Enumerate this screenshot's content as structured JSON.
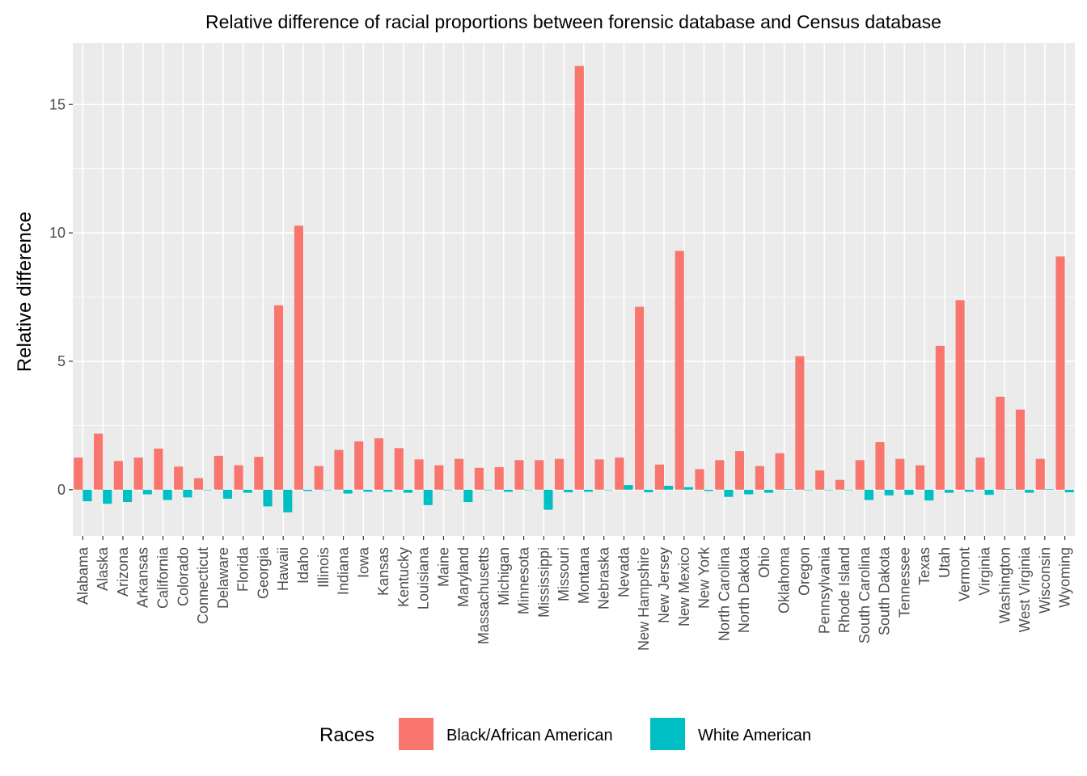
{
  "chart_data": {
    "type": "bar",
    "title": "Relative difference of racial proportions between forensic database and Census database",
    "xlabel": "",
    "ylabel": "Relative difference",
    "ylim": [
      -1.8,
      17.4
    ],
    "yticks": [
      0,
      5,
      10,
      15
    ],
    "grid": true,
    "legend": {
      "title": "Races",
      "position": "bottom"
    },
    "categories": [
      "Alabama",
      "Alaska",
      "Arizona",
      "Arkansas",
      "California",
      "Colorado",
      "Connecticut",
      "Delaware",
      "Florida",
      "Georgia",
      "Hawaii",
      "Idaho",
      "Illinois",
      "Indiana",
      "Iowa",
      "Kansas",
      "Kentucky",
      "Louisiana",
      "Maine",
      "Maryland",
      "Massachusetts",
      "Michigan",
      "Minnesota",
      "Mississippi",
      "Missouri",
      "Montana",
      "Nebraska",
      "Nevada",
      "New Hampshire",
      "New Jersey",
      "New Mexico",
      "New York",
      "North Carolina",
      "North Dakota",
      "Ohio",
      "Oklahoma",
      "Oregon",
      "Pennsylvania",
      "Rhode Island",
      "South Carolina",
      "South Dakota",
      "Tennessee",
      "Texas",
      "Utah",
      "Vermont",
      "Virginia",
      "Washington",
      "West Virginia",
      "Wisconsin",
      "Wyoming"
    ],
    "series": [
      {
        "name": "Black/African American",
        "color": "#F8766D",
        "values": [
          1.25,
          2.18,
          1.12,
          1.25,
          1.6,
          0.9,
          0.45,
          1.32,
          0.95,
          1.28,
          7.18,
          10.28,
          0.92,
          1.55,
          1.88,
          2.0,
          1.62,
          1.18,
          0.95,
          1.2,
          0.85,
          0.88,
          1.15,
          1.15,
          1.2,
          16.5,
          1.18,
          1.25,
          7.12,
          0.98,
          9.3,
          0.8,
          1.15,
          1.5,
          0.92,
          1.42,
          5.2,
          0.75,
          0.38,
          1.15,
          1.85,
          1.2,
          0.95,
          5.6,
          7.38,
          1.25,
          3.62,
          3.12,
          1.2,
          9.08
        ]
      },
      {
        "name": "White American",
        "color": "#00BFC4",
        "values": [
          -0.45,
          -0.55,
          -0.48,
          -0.18,
          -0.4,
          -0.3,
          -0.02,
          -0.35,
          -0.12,
          -0.65,
          -0.88,
          -0.05,
          0.0,
          -0.15,
          -0.08,
          -0.08,
          -0.12,
          -0.6,
          -0.02,
          -0.48,
          -0.02,
          -0.08,
          0.0,
          -0.78,
          -0.1,
          -0.08,
          0.0,
          0.18,
          -0.1,
          0.15,
          0.1,
          -0.05,
          -0.28,
          -0.18,
          -0.12,
          0.02,
          -0.02,
          0.0,
          0.0,
          -0.4,
          -0.22,
          -0.2,
          -0.42,
          -0.12,
          -0.08,
          -0.2,
          0.02,
          -0.12,
          0.02,
          -0.1
        ]
      }
    ]
  }
}
